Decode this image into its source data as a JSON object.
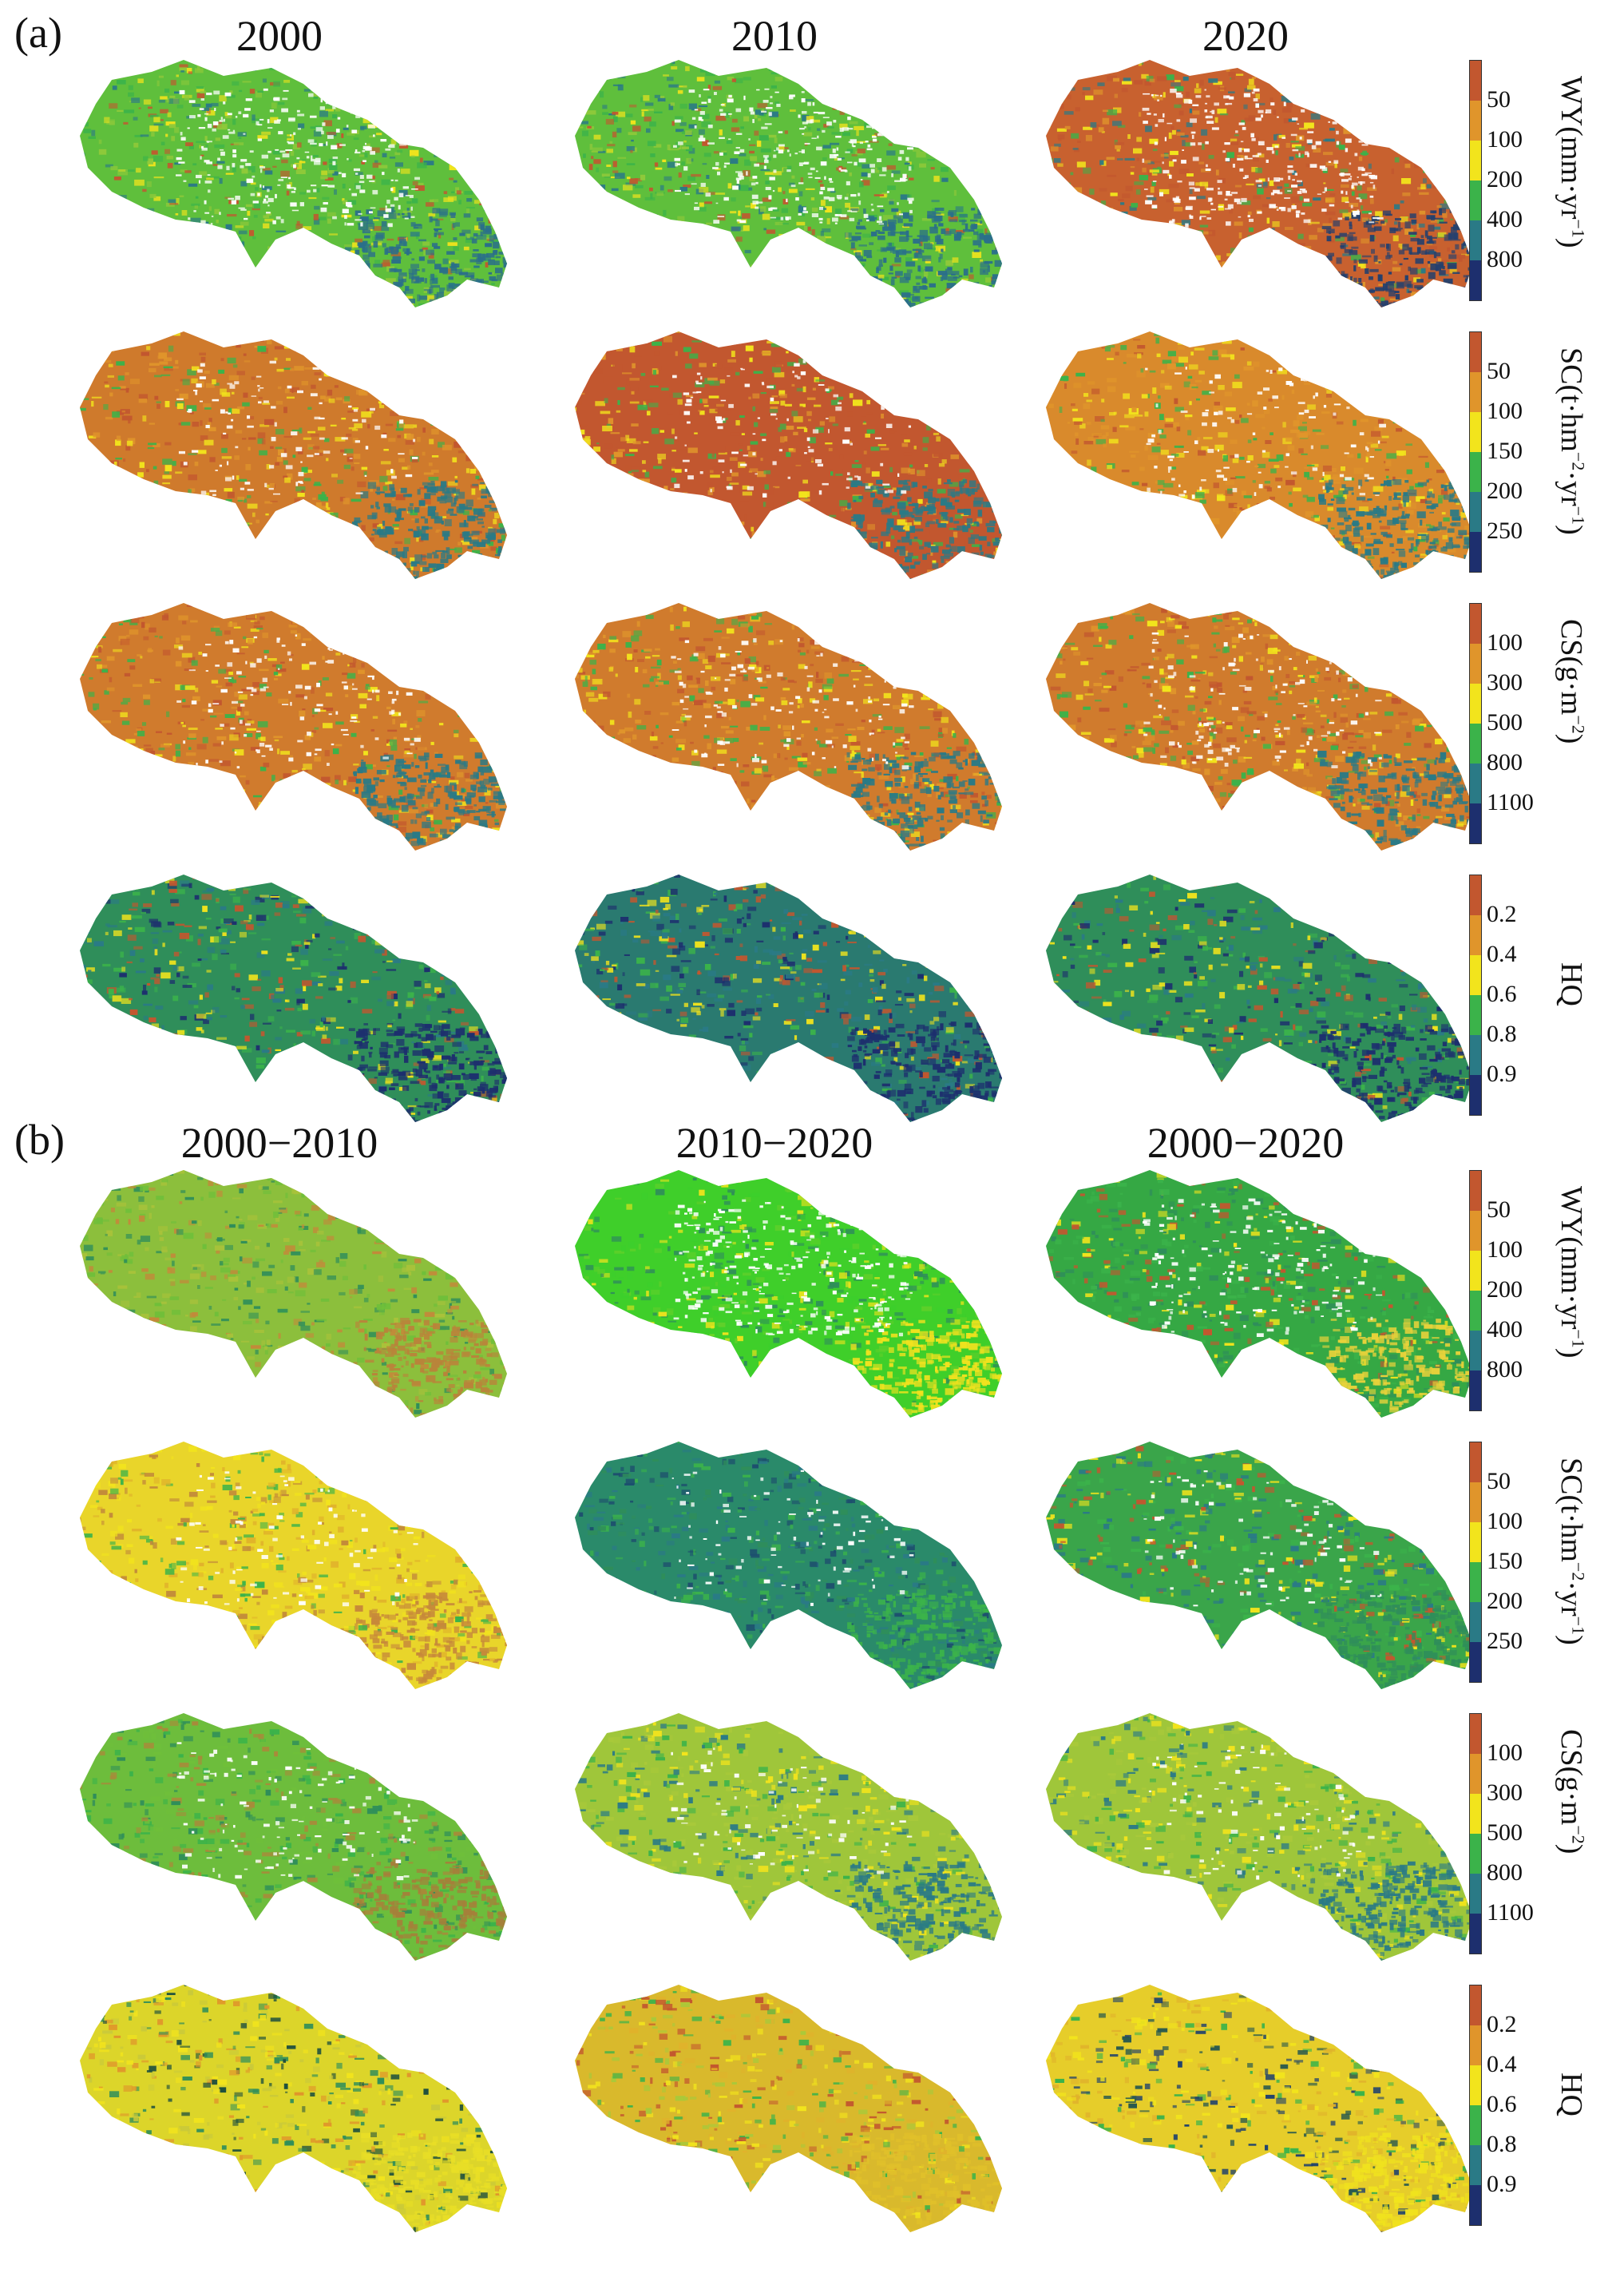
{
  "panels": [
    {
      "label": "(a)",
      "column_titles": [
        "2000",
        "2010",
        "2020"
      ],
      "rows": [
        {
          "indicator": "WY",
          "legend": {
            "label_html": "WY(mm·yr<sup>−1</sup>)",
            "ticks": [
              "50",
              "100",
              "200",
              "400",
              "800"
            ]
          },
          "maps": [
            {
              "palette": [
                "#3bb34a",
                "#8fc93a",
                "#f2e41c",
                "#c2572f",
                "#2a7a86"
              ],
              "dominant": "#5fbf3c",
              "snow": 0.3,
              "se_tone": "#2a6f8a"
            },
            {
              "palette": [
                "#3bb34a",
                "#8fc93a",
                "#f2e41c",
                "#c2572f",
                "#2a7a86"
              ],
              "dominant": "#5fbf3c",
              "snow": 0.3,
              "se_tone": "#2a6f8a"
            },
            {
              "palette": [
                "#c2572f",
                "#e0952b",
                "#f2e41c",
                "#3bb34a",
                "#2a7a86"
              ],
              "dominant": "#c8612f",
              "snow": 0.3,
              "se_tone": "#23406e"
            }
          ]
        },
        {
          "indicator": "SC",
          "legend": {
            "label_html": "SC(t·hm<sup>−2</sup>·yr<sup>−1</sup>)",
            "ticks": [
              "50",
              "100",
              "150",
              "200",
              "250"
            ]
          },
          "maps": [
            {
              "palette": [
                "#c2572f",
                "#e0952b",
                "#f2e41c",
                "#3bb34a"
              ],
              "dominant": "#cf7a2c",
              "snow": 0.12,
              "se_tone": "#2a7a86"
            },
            {
              "palette": [
                "#c2572f",
                "#e0952b",
                "#f2e41c",
                "#3bb34a"
              ],
              "dominant": "#c2572f",
              "snow": 0.12,
              "se_tone": "#2a7a86"
            },
            {
              "palette": [
                "#c2572f",
                "#e0952b",
                "#f2e41c",
                "#3bb34a"
              ],
              "dominant": "#d98a2c",
              "snow": 0.12,
              "se_tone": "#2a7a86"
            }
          ]
        },
        {
          "indicator": "CS",
          "legend": {
            "label_html": "CS(g·m<sup>−2</sup>)",
            "ticks": [
              "100",
              "300",
              "500",
              "800",
              "1100"
            ]
          },
          "maps": [
            {
              "palette": [
                "#c2572f",
                "#e0952b",
                "#f2e41c",
                "#3bb34a"
              ],
              "dominant": "#d07b2d",
              "snow": 0.14,
              "se_tone": "#2a7a86"
            },
            {
              "palette": [
                "#c2572f",
                "#e0952b",
                "#f2e41c",
                "#3bb34a"
              ],
              "dominant": "#d07b2d",
              "snow": 0.14,
              "se_tone": "#2a7a86"
            },
            {
              "palette": [
                "#c2572f",
                "#e0952b",
                "#f2e41c",
                "#3bb34a"
              ],
              "dominant": "#d07b2d",
              "snow": 0.14,
              "se_tone": "#2a7a86"
            }
          ]
        },
        {
          "indicator": "HQ",
          "legend": {
            "label_html": "HQ",
            "ticks": [
              "0.2",
              "0.4",
              "0.6",
              "0.8",
              "0.9"
            ]
          },
          "maps": [
            {
              "palette": [
                "#3bb34a",
                "#2a7a86",
                "#c2572f",
                "#f2e41c",
                "#1d2f6e"
              ],
              "dominant": "#2f8e5a",
              "snow": 0.0,
              "se_tone": "#1d2f6e"
            },
            {
              "palette": [
                "#2a7a86",
                "#3bb34a",
                "#1d2f6e",
                "#c2572f",
                "#f2e41c"
              ],
              "dominant": "#2a7a70",
              "snow": 0.0,
              "se_tone": "#1d2f6e"
            },
            {
              "palette": [
                "#3bb34a",
                "#2a7a86",
                "#1d2f6e",
                "#c2572f",
                "#f2e41c"
              ],
              "dominant": "#2f8e5a",
              "snow": 0.0,
              "se_tone": "#1d2f6e"
            }
          ]
        }
      ]
    },
    {
      "label": "(b)",
      "column_titles": [
        "2000−2010",
        "2010−2020",
        "2000−2020"
      ],
      "rows": [
        {
          "indicator": "WY",
          "legend": {
            "label_html": "WY(mm·yr<sup>−1</sup>)",
            "ticks": [
              "50",
              "100",
              "200",
              "400",
              "800"
            ]
          },
          "maps": [
            {
              "palette": [
                "#6fbf3a",
                "#a9c23a",
                "#c28a3a",
                "#2f8e5a"
              ],
              "dominant": "#8cbf3c",
              "snow": 0.0,
              "se_tone": "#b9843a"
            },
            {
              "palette": [
                "#3ccf2c",
                "#5fd02a",
                "#f2e41c",
                "#2f8e5a"
              ],
              "dominant": "#3fcf2a",
              "snow": 0.3,
              "se_tone": "#f0e21e"
            },
            {
              "palette": [
                "#3bb34a",
                "#2f8e5a",
                "#c2572f",
                "#f2e41c"
              ],
              "dominant": "#35a844",
              "snow": 0.18,
              "se_tone": "#e8d23a"
            }
          ]
        },
        {
          "indicator": "SC",
          "legend": {
            "label_html": "SC(t·hm<sup>−2</sup>·yr<sup>−1</sup>)",
            "ticks": [
              "50",
              "100",
              "150",
              "200",
              "250"
            ]
          },
          "maps": [
            {
              "palette": [
                "#f2e41c",
                "#e0b22b",
                "#c28a3a",
                "#3bb34a"
              ],
              "dominant": "#e9d52a",
              "snow": 0.1,
              "se_tone": "#c7893a"
            },
            {
              "palette": [
                "#2a7a86",
                "#2f8e5a",
                "#3bb34a",
                "#1d4f6e"
              ],
              "dominant": "#2a8a6a",
              "snow": 0.1,
              "se_tone": "#3bb34a"
            },
            {
              "palette": [
                "#3bb34a",
                "#2a7a86",
                "#c2572f",
                "#f2e41c"
              ],
              "dominant": "#3aa54a",
              "snow": 0.1,
              "se_tone": "#2f8e5a"
            }
          ]
        },
        {
          "indicator": "CS",
          "legend": {
            "label_html": "CS(g·m<sup>−2</sup>)",
            "ticks": [
              "100",
              "300",
              "500",
              "800",
              "1100"
            ]
          },
          "maps": [
            {
              "palette": [
                "#6fbf3a",
                "#3bb34a",
                "#a88a3a",
                "#2f8e5a"
              ],
              "dominant": "#6dbd3c",
              "snow": 0.14,
              "se_tone": "#a5803a"
            },
            {
              "palette": [
                "#a9c93a",
                "#3bb34a",
                "#f2e41c",
                "#2a7a86"
              ],
              "dominant": "#9fc63a",
              "snow": 0.1,
              "se_tone": "#2a7a86"
            },
            {
              "palette": [
                "#a9c93a",
                "#3bb34a",
                "#f2e41c",
                "#2a7a86"
              ],
              "dominant": "#9fc63a",
              "snow": 0.1,
              "se_tone": "#2a7a86"
            }
          ]
        },
        {
          "indicator": "HQ",
          "legend": {
            "label_html": "HQ",
            "ticks": [
              "0.2",
              "0.4",
              "0.6",
              "0.8",
              "0.9"
            ]
          },
          "maps": [
            {
              "palette": [
                "#f2e41c",
                "#c9c93a",
                "#2f8e5a",
                "#1d4f3e",
                "#e0952b"
              ],
              "dominant": "#dcd52a",
              "snow": 0.0,
              "se_tone": "#e8de26"
            },
            {
              "palette": [
                "#e0b22b",
                "#f2e41c",
                "#3bb34a",
                "#c2572f",
                "#a9c93a"
              ],
              "dominant": "#d9b92c",
              "snow": 0.0,
              "se_tone": "#e0c02a"
            },
            {
              "palette": [
                "#f2e41c",
                "#e0b22b",
                "#2a5a4e",
                "#1d3f6e",
                "#3bb34a"
              ],
              "dominant": "#e6cd2a",
              "snow": 0.0,
              "se_tone": "#f0e21e"
            }
          ]
        }
      ]
    }
  ],
  "legend_colors": [
    "#c2572f",
    "#e0952b",
    "#f2e41c",
    "#3bb34a",
    "#2a7a86",
    "#1d2f6e"
  ]
}
